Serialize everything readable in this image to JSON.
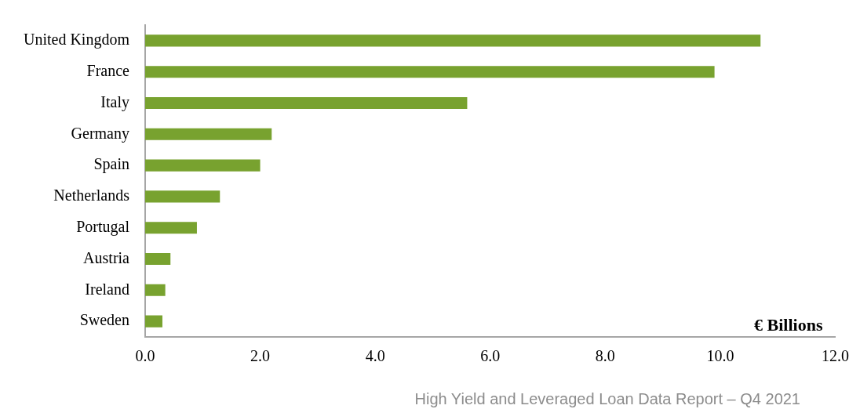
{
  "chart_data": {
    "type": "bar",
    "orientation": "horizontal",
    "xlabel": "€ Billions",
    "categories": [
      "United Kingdom",
      "France",
      "Italy",
      "Germany",
      "Spain",
      "Netherlands",
      "Portugal",
      "Austria",
      "Ireland",
      "Sweden"
    ],
    "values": [
      10.7,
      9.9,
      5.6,
      2.2,
      2.0,
      1.3,
      0.9,
      0.44,
      0.35,
      0.3
    ],
    "color": "#78a22f",
    "xlim": [
      0,
      12
    ],
    "xticks": [
      {
        "value": 0,
        "label": "0.0"
      },
      {
        "value": 2,
        "label": "2.0"
      },
      {
        "value": 4,
        "label": "4.0"
      },
      {
        "value": 6,
        "label": "6.0"
      },
      {
        "value": 8,
        "label": "8.0"
      },
      {
        "value": 10,
        "label": "10.0"
      },
      {
        "value": 12,
        "label": "12.0"
      }
    ],
    "grid": false,
    "legend": false,
    "annotations": [
      "High Yield and Leveraged Loan Data Report – Q4 2021"
    ]
  }
}
